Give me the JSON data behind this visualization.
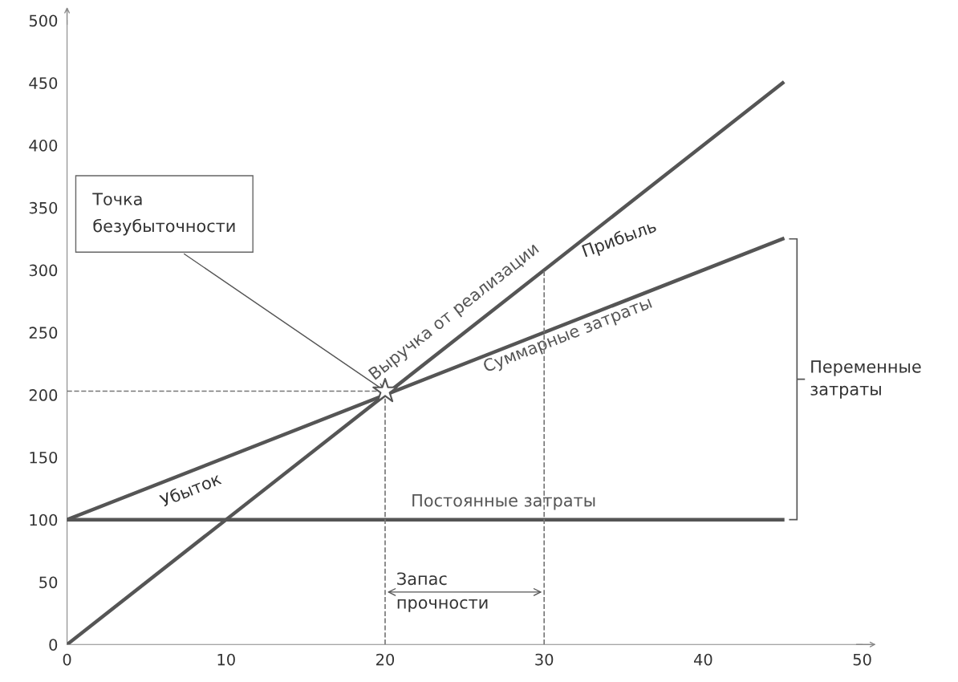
{
  "chart_data": {
    "type": "line",
    "xlim": [
      0,
      50
    ],
    "ylim": [
      0,
      500
    ],
    "xticks": [
      0,
      10,
      20,
      30,
      40,
      50
    ],
    "yticks": [
      0,
      50,
      100,
      150,
      200,
      250,
      300,
      350,
      400,
      450,
      500
    ],
    "grid": false,
    "legend": false,
    "marker": "none",
    "line_style": "solid",
    "series": [
      {
        "name": "Выручка от реализации",
        "color": "#555555",
        "x": [
          0,
          45
        ],
        "values": [
          0,
          450
        ]
      },
      {
        "name": "Суммарные затраты",
        "color": "#555555",
        "x": [
          0,
          45
        ],
        "values": [
          100,
          325
        ]
      },
      {
        "name": "Постоянные затраты",
        "color": "#555555",
        "x": [
          0,
          45
        ],
        "values": [
          100,
          100
        ]
      },
      {
        "color": "#777777",
        "line_style": "dashed",
        "x": [
          0,
          20
        ],
        "values": [
          203,
          203
        ]
      },
      {
        "color": "#777777",
        "line_style": "dashed",
        "x": [
          20,
          20
        ],
        "values": [
          0,
          203
        ]
      },
      {
        "color": "#777777",
        "line_style": "dashed",
        "x": [
          30,
          30
        ],
        "values": [
          0,
          300
        ]
      },
      {
        "type": "scatter",
        "marker": "star",
        "color": "#555555",
        "x": [
          20
        ],
        "values": [
          203
        ]
      }
    ],
    "annotations": [
      {
        "text": "Точка\nбезубыточности",
        "x": 20,
        "y": 203
      },
      "Прибыль",
      "Убыток",
      "Запас\nпрочности",
      "Переменные\nзатраты"
    ]
  }
}
